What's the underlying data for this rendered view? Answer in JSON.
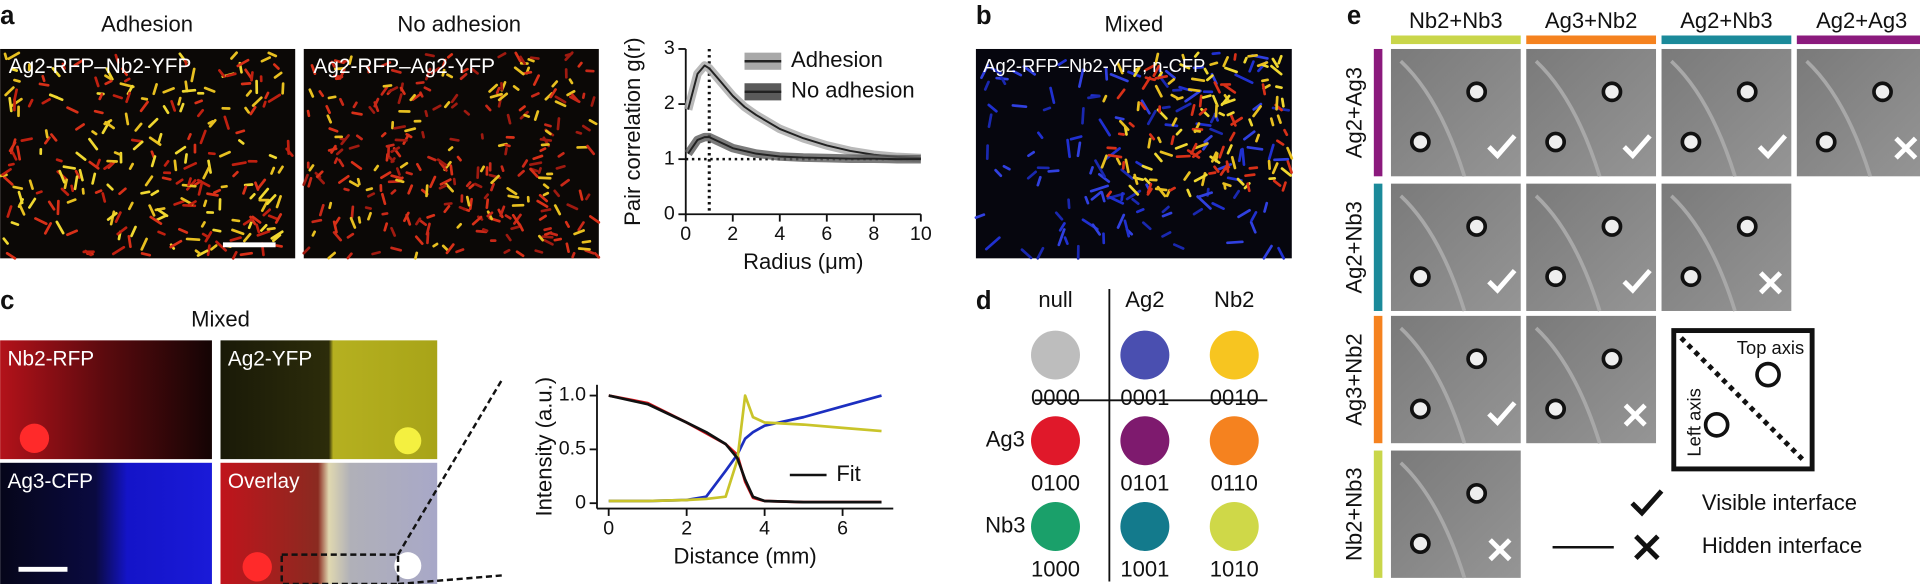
{
  "panels": {
    "a": {
      "letter": "a",
      "titles": [
        "Adhesion",
        "No adhesion"
      ],
      "image_labels": [
        "Ag2-RFP–Nb2-YFP",
        "Ag2-RFP–Ag2-YFP"
      ]
    },
    "b": {
      "letter": "b",
      "title": "Mixed",
      "image_label": "Ag2-RFP–Nb2-YFP, n-CFP"
    },
    "c": {
      "letter": "c",
      "title": "Mixed",
      "image_labels": [
        "Nb2-RFP",
        "Ag2-YFP",
        "Ag3-CFP",
        "Overlay"
      ]
    },
    "d": {
      "letter": "d",
      "columns": [
        "null",
        "Ag2",
        "Nb2"
      ],
      "rows": [
        "Ag3",
        "Nb3"
      ],
      "cells": [
        {
          "code": "0000",
          "color": "#bdbdbd"
        },
        {
          "code": "0001",
          "color": "#4a4fb0"
        },
        {
          "code": "0010",
          "color": "#f7c520"
        },
        {
          "code": "0100",
          "color": "#e0182a"
        },
        {
          "code": "0101",
          "color": "#7e1a6e"
        },
        {
          "code": "0110",
          "color": "#f5821f"
        },
        {
          "code": "1000",
          "color": "#1aa06a"
        },
        {
          "code": "1001",
          "color": "#137a8c"
        },
        {
          "code": "1010",
          "color": "#cfd848"
        }
      ]
    },
    "e": {
      "letter": "e",
      "columns": [
        {
          "label": "Nb2+Nb3",
          "color": "#c9d64a"
        },
        {
          "label": "Ag3+Nb2",
          "color": "#f5821f"
        },
        {
          "label": "Ag2+Nb3",
          "color": "#1b8a9a"
        },
        {
          "label": "Ag2+Ag3",
          "color": "#8b1a7d"
        }
      ],
      "rows": [
        {
          "label": "Ag2+Ag3",
          "color": "#8b1a7d"
        },
        {
          "label": "Ag2+Nb3",
          "color": "#1b8a9a"
        },
        {
          "label": "Ag3+Nb2",
          "color": "#f5821f"
        },
        {
          "label": "Nb2+Nb3",
          "color": "#c9d64a"
        }
      ],
      "grid": [
        [
          "check",
          "check",
          "check",
          "cross"
        ],
        [
          "check",
          "check",
          "cross"
        ],
        [
          "check",
          "cross"
        ],
        [
          "cross"
        ]
      ],
      "key": {
        "top": "Top axis",
        "left": "Left axis"
      },
      "legend": [
        "Visible interface",
        "Hidden interface"
      ]
    }
  },
  "chart_data": [
    {
      "type": "line",
      "xlabel": "Radius (μm)",
      "ylabel": "Pair correlation g(r)",
      "x": [
        0.1,
        0.5,
        0.8,
        1,
        1.5,
        2,
        2.5,
        3,
        4,
        5,
        6,
        7,
        8,
        9,
        10
      ],
      "series": [
        {
          "name": "Adhesion",
          "color": "#222222",
          "band_color": "#a8a8a8",
          "values": [
            1.9,
            2.55,
            2.7,
            2.65,
            2.4,
            2.15,
            1.95,
            1.8,
            1.55,
            1.38,
            1.25,
            1.15,
            1.08,
            1.04,
            1.02
          ]
        },
        {
          "name": "No adhesion",
          "color": "#222222",
          "band_color": "#5a5a5a",
          "values": [
            1.1,
            1.35,
            1.4,
            1.4,
            1.3,
            1.2,
            1.15,
            1.1,
            1.05,
            1.03,
            1.02,
            1.01,
            1.01,
            1.0,
            1.0
          ]
        }
      ],
      "xlim": [
        0,
        10
      ],
      "ylim": [
        0,
        3
      ],
      "xticks": [
        0,
        2,
        4,
        6,
        8,
        10
      ],
      "yticks": [
        0,
        1,
        2,
        3
      ],
      "ref_lines": {
        "x": 1,
        "y": 1
      }
    },
    {
      "type": "line",
      "xlabel": "Distance (mm)",
      "ylabel": "Intensity (a.u.)",
      "x": [
        0,
        1,
        2,
        2.5,
        3,
        3.3,
        3.5,
        3.7,
        4,
        5,
        6,
        7
      ],
      "series": [
        {
          "color": "#d8141c",
          "values": [
            1.0,
            0.93,
            0.75,
            0.65,
            0.55,
            0.45,
            0.2,
            0.05,
            0.02,
            0.01,
            0.01,
            0.01
          ]
        },
        {
          "color": "#1c2fc0",
          "values": [
            0.02,
            0.02,
            0.03,
            0.06,
            0.3,
            0.45,
            0.6,
            0.66,
            0.72,
            0.8,
            0.9,
            1.0
          ]
        },
        {
          "color": "#c9c42a",
          "values": [
            0.02,
            0.02,
            0.03,
            0.04,
            0.06,
            0.4,
            1.0,
            0.8,
            0.75,
            0.73,
            0.7,
            0.67
          ]
        },
        {
          "name": "Fit",
          "color": "#111111",
          "values": [
            1.0,
            0.92,
            0.75,
            0.66,
            0.55,
            0.42,
            0.22,
            0.06,
            0.02,
            0.01,
            0.01,
            0.01
          ]
        }
      ],
      "xlim": [
        -0.3,
        7.3
      ],
      "ylim": [
        -0.05,
        1.1
      ],
      "xticks": [
        0,
        2,
        4,
        6
      ],
      "yticks": [
        0,
        0.5,
        {
          "value": 1,
          "label": "1.0"
        }
      ]
    }
  ]
}
